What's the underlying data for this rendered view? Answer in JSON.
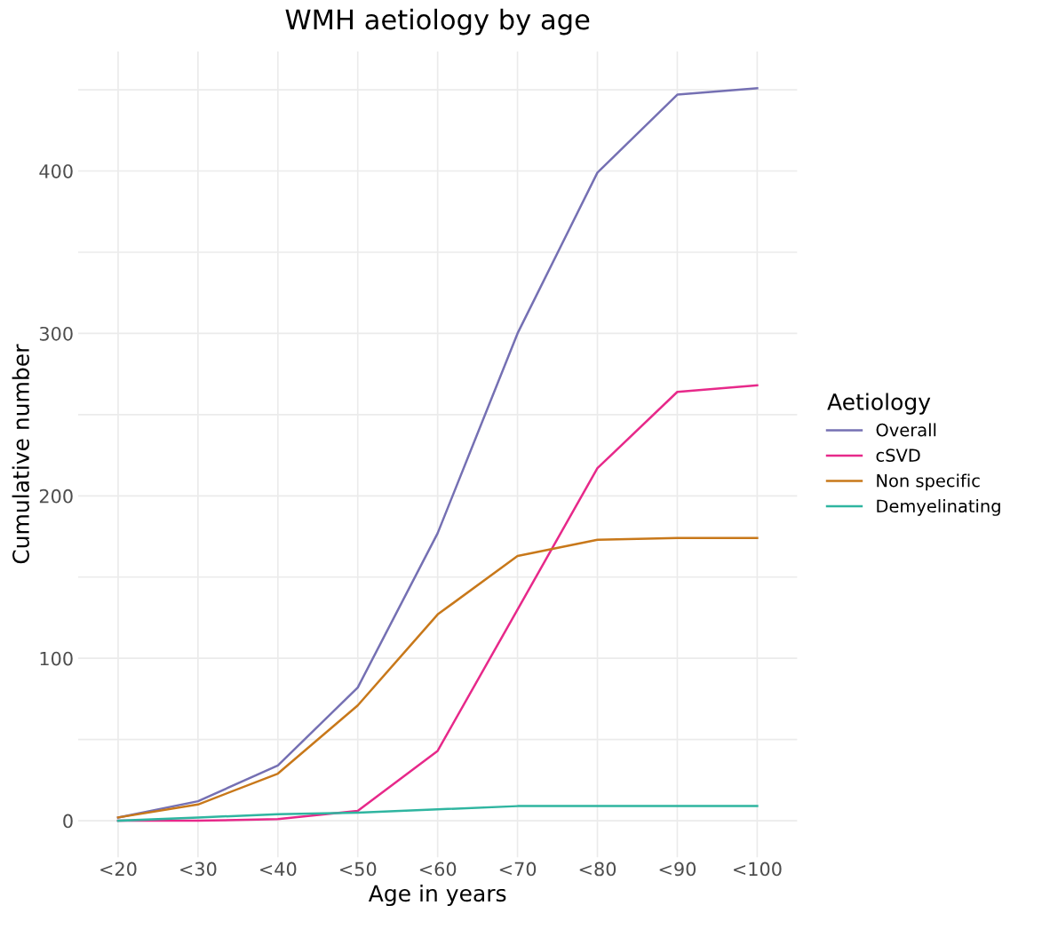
{
  "chart_data": {
    "type": "line",
    "title": "WMH aetiology by age",
    "xlabel": "Age in years",
    "ylabel": "Cumulative number",
    "legend_title": "Aetiology",
    "categories": [
      "<20",
      "<30",
      "<40",
      "<50",
      "<60",
      "<70",
      "<80",
      "<90",
      "<100"
    ],
    "series": [
      {
        "name": "Overall",
        "color": "#7570b3",
        "values": [
          2,
          12,
          34,
          82,
          177,
          300,
          399,
          447,
          451
        ]
      },
      {
        "name": "cSVD",
        "color": "#e7298a",
        "values": [
          0,
          0,
          1,
          6,
          43,
          130,
          217,
          264,
          268
        ]
      },
      {
        "name": "Non specific",
        "color": "#c8781a",
        "values": [
          2,
          10,
          29,
          71,
          127,
          163,
          173,
          174,
          174
        ]
      },
      {
        "name": "Demyelinating",
        "color": "#2fb5a0",
        "values": [
          0,
          2,
          4,
          5,
          7,
          9,
          9,
          9,
          9
        ]
      }
    ],
    "ylim": [
      -22.55,
      473.55
    ],
    "yticks": [
      0,
      {
        "value": 50,
        "label": null
      },
      100,
      {
        "value": 150,
        "label": null
      },
      200,
      {
        "value": 250,
        "label": null
      },
      300,
      {
        "value": 350,
        "label": null
      },
      400,
      {
        "value": 450,
        "label": null
      }
    ],
    "grid": true,
    "legend": "right",
    "marker": "none",
    "line_style": "solid"
  }
}
